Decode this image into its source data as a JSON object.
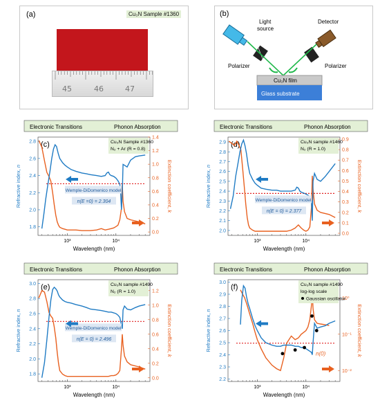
{
  "panel_a": {
    "label": "(a)",
    "sample": "Cu₃N Sample #1360",
    "ruler_numbers": [
      "45",
      "46",
      "47"
    ],
    "film_color": "#c3161c"
  },
  "panel_b": {
    "label": "(b)",
    "light_source": "Light",
    "light_source2": "source",
    "detector": "Detector",
    "polarizer_left": "Polarizer",
    "polarizer_right": "Polarizer",
    "film": "Cu₃N film",
    "substrate": "Glass substrate"
  },
  "colors": {
    "n": "#1f7bc4",
    "k": "#e8601f",
    "ref_line": "#e02020",
    "banner": "#e3f0d6"
  },
  "banner": {
    "left": "Electronic Transitions",
    "right": "Phonon Absorption"
  },
  "xlabel": "Wavelength (nm)",
  "ylabel_left": "Refractive index,",
  "ylabel_left_var": "n",
  "ylabel_right": "Extinction coefficient,",
  "ylabel_right_var": "k",
  "chart_data": [
    {
      "type": "line",
      "label": "(c)",
      "sample": "Cu₃N Sample #1360",
      "condition": "N₂ + Ar (R = 0.8)",
      "model": "Wemple-DiDomenico model",
      "model_value": "n(E =0) = 2.304",
      "x_log": true,
      "xlim": [
        250,
        50000
      ],
      "x_ticks": [
        "10³",
        "10⁴"
      ],
      "n_ylim": [
        1.7,
        2.85
      ],
      "n_ticks": [
        "1.8",
        "2.0",
        "2.2",
        "2.4",
        "2.6",
        "2.8"
      ],
      "k_ylim": [
        -0.05,
        1.4
      ],
      "k_ticks": [
        "0.0",
        "0.2",
        "0.4",
        "0.6",
        "0.8",
        "1.0",
        "1.2",
        "1.4"
      ],
      "ref_n": 2.304,
      "n_series": {
        "x": [
          300,
          330,
          360,
          400,
          440,
          480,
          520,
          560,
          600,
          650,
          700,
          800,
          900,
          1000,
          1200,
          1500,
          2000,
          2500,
          3000,
          4000,
          5000,
          6000,
          6500,
          7000,
          7500,
          8000,
          9000,
          10000,
          11000,
          12000,
          12500,
          13000,
          13500,
          14000,
          15000,
          17000,
          20000,
          25000,
          30000,
          40000
        ],
        "y": [
          1.78,
          1.95,
          2.12,
          2.3,
          2.45,
          2.6,
          2.71,
          2.76,
          2.74,
          2.66,
          2.6,
          2.55,
          2.52,
          2.5,
          2.47,
          2.45,
          2.43,
          2.42,
          2.41,
          2.4,
          2.39,
          2.4,
          2.43,
          2.44,
          2.41,
          2.4,
          2.39,
          2.37,
          2.34,
          2.3,
          2.2,
          2.0,
          2.2,
          2.53,
          2.52,
          2.5,
          2.58,
          2.62,
          2.63,
          2.64
        ]
      },
      "k_series": {
        "x": [
          260,
          300,
          340,
          380,
          420,
          460,
          500,
          540,
          580,
          620,
          660,
          700,
          800,
          900,
          1000,
          1200,
          1500,
          2000,
          3000,
          4000,
          5000,
          6000,
          7000,
          8000,
          9000,
          10000,
          11000,
          12000,
          13000,
          13500,
          14000,
          15000,
          17000,
          20000,
          30000,
          40000
        ],
        "y": [
          1.35,
          1.25,
          1.05,
          0.88,
          0.82,
          0.75,
          0.58,
          0.4,
          0.25,
          0.15,
          0.1,
          0.07,
          0.05,
          0.04,
          0.03,
          0.03,
          0.03,
          0.02,
          0.02,
          0.03,
          0.05,
          0.03,
          0.04,
          0.05,
          0.06,
          0.08,
          0.1,
          0.18,
          0.35,
          0.7,
          0.45,
          0.3,
          0.2,
          0.18,
          0.15,
          0.12
        ]
      }
    },
    {
      "type": "line",
      "label": "(d)",
      "sample": "Cu₃N sample #1460",
      "condition": "N₂ (R = 1.0)",
      "model": "Wemple-DiDomenico model",
      "model_value": "n(E = 0) = 2.377",
      "x_log": true,
      "xlim": [
        250,
        50000
      ],
      "x_ticks": [
        "10³",
        "10⁴"
      ],
      "n_ylim": [
        1.95,
        2.95
      ],
      "n_ticks": [
        "2.0",
        "2.1",
        "2.2",
        "2.3",
        "2.4",
        "2.5",
        "2.6",
        "2.7",
        "2.8",
        "2.9"
      ],
      "k_ylim": [
        -0.02,
        0.92
      ],
      "k_ticks": [
        "0.0",
        "0.1",
        "0.2",
        "0.3",
        "0.4",
        "0.5",
        "0.6",
        "0.7",
        "0.8",
        "0.9"
      ],
      "ref_n": 2.377,
      "n_series": {
        "x": [
          280,
          320,
          360,
          400,
          440,
          480,
          520,
          560,
          600,
          650,
          700,
          800,
          900,
          1000,
          1200,
          1500,
          2000,
          2500,
          3000,
          4000,
          5000,
          6000,
          6500,
          7000,
          7500,
          8000,
          9000,
          10000,
          11000,
          12000,
          13000,
          13500,
          14000,
          15000,
          17000,
          20000,
          25000,
          30000,
          40000
        ],
        "y": [
          2.22,
          2.35,
          2.55,
          2.68,
          2.8,
          2.88,
          2.92,
          2.86,
          2.78,
          2.66,
          2.58,
          2.52,
          2.48,
          2.46,
          2.43,
          2.42,
          2.41,
          2.41,
          2.4,
          2.4,
          2.4,
          2.41,
          2.44,
          2.43,
          2.4,
          2.39,
          2.38,
          2.37,
          2.36,
          2.34,
          2.3,
          2.1,
          2.5,
          2.58,
          2.52,
          2.5,
          2.55,
          2.6,
          2.68
        ]
      },
      "k_series": {
        "x": [
          260,
          300,
          340,
          380,
          420,
          460,
          500,
          540,
          580,
          620,
          660,
          700,
          800,
          900,
          1000,
          1200,
          1500,
          2000,
          3000,
          4000,
          5000,
          6000,
          7000,
          8000,
          9000,
          10000,
          11000,
          12000,
          13000,
          13500,
          14000,
          15000,
          17000,
          20000,
          30000,
          40000
        ],
        "y": [
          0.88,
          0.86,
          0.84,
          0.88,
          0.84,
          0.8,
          0.62,
          0.45,
          0.28,
          0.15,
          0.08,
          0.05,
          0.03,
          0.02,
          0.02,
          0.02,
          0.02,
          0.02,
          0.02,
          0.02,
          0.03,
          0.05,
          0.08,
          0.05,
          0.03,
          0.02,
          0.03,
          0.06,
          0.25,
          0.55,
          0.42,
          0.28,
          0.22,
          0.2,
          0.18,
          0.15
        ]
      }
    },
    {
      "type": "line",
      "label": "(e)",
      "sample": "Cu₃N sample #1490",
      "condition": "N₂ (R = 1.0)",
      "model": "Wemple-DiDomenico model",
      "model_value": "n(E = 0) = 2.496",
      "x_log": true,
      "xlim": [
        250,
        50000
      ],
      "x_ticks": [
        "10³",
        "10⁴"
      ],
      "n_ylim": [
        1.7,
        3.05
      ],
      "n_ticks": [
        "1.8",
        "2.0",
        "2.2",
        "2.4",
        "2.6",
        "2.8",
        "3.0"
      ],
      "k_ylim": [
        -0.05,
        1.35
      ],
      "k_ticks": [
        "0.0",
        "0.2",
        "0.4",
        "0.6",
        "0.8",
        "1.0",
        "1.2"
      ],
      "ref_n": 2.496,
      "n_series": {
        "x": [
          300,
          340,
          380,
          420,
          460,
          500,
          540,
          580,
          620,
          660,
          700,
          800,
          900,
          1000,
          1200,
          1500,
          2000,
          2500,
          3000,
          4000,
          5000,
          6000,
          7000,
          8000,
          9000,
          10000,
          11000,
          12000,
          13000,
          13500,
          14000,
          15000,
          17000,
          20000,
          25000,
          30000,
          40000
        ],
        "y": [
          1.75,
          1.95,
          2.25,
          2.55,
          2.78,
          2.92,
          2.95,
          2.93,
          2.9,
          2.85,
          2.82,
          2.78,
          2.76,
          2.75,
          2.74,
          2.72,
          2.7,
          2.68,
          2.66,
          2.65,
          2.64,
          2.63,
          2.62,
          2.62,
          2.61,
          2.6,
          2.58,
          2.55,
          2.45,
          2.4,
          2.65,
          2.7,
          2.66,
          2.65,
          2.68,
          2.7,
          2.72
        ]
      },
      "k_series": {
        "x": [
          260,
          300,
          340,
          380,
          420,
          460,
          500,
          540,
          580,
          620,
          660,
          700,
          800,
          900,
          1000,
          1200,
          1500,
          2000,
          3000,
          4000,
          5000,
          6000,
          7000,
          8000,
          9000,
          10000,
          11000,
          12000,
          13000,
          13500,
          14000,
          15000,
          17000,
          20000,
          30000,
          40000
        ],
        "y": [
          1.1,
          1.2,
          1.18,
          1.05,
          0.9,
          0.85,
          0.82,
          0.7,
          0.55,
          0.35,
          0.2,
          0.1,
          0.05,
          0.03,
          0.02,
          0.02,
          0.02,
          0.02,
          0.02,
          0.02,
          0.02,
          0.02,
          0.02,
          0.03,
          0.03,
          0.04,
          0.06,
          0.1,
          0.4,
          0.6,
          0.45,
          0.3,
          0.22,
          0.18,
          0.15,
          0.12
        ]
      }
    },
    {
      "type": "line",
      "label": "(f)",
      "sample": "Cu₃N sample #1490",
      "condition": "log-log scale",
      "legend_marker": "Gaussian oscillator",
      "model": "",
      "model_value": "n(0)",
      "x_log": true,
      "xlim": [
        250,
        50000
      ],
      "x_ticks": [
        "10³",
        "10⁴"
      ],
      "n_ylim": [
        2.18,
        3.02
      ],
      "n_ticks": [
        "2.2",
        "2.3",
        "2.4",
        "2.5",
        "2.6",
        "2.7",
        "2.8",
        "2.9",
        "3.0"
      ],
      "k_ylim_log": [
        -2.3,
        0.5
      ],
      "k_ticks_log": [
        "10⁻²",
        "10⁻¹",
        "10⁰"
      ],
      "ref_n": 2.496,
      "n_series": {
        "x": [
          450,
          480,
          520,
          560,
          600,
          650,
          700,
          800,
          900,
          1000,
          1200,
          1500,
          2000,
          2500,
          3000,
          3500,
          4000,
          5000,
          6000,
          7000,
          8000,
          9000,
          10000,
          11000,
          12000,
          13000,
          13500,
          14000,
          15000,
          17000,
          20000,
          25000,
          30000,
          40000
        ],
        "y": [
          2.65,
          2.85,
          2.97,
          2.95,
          2.88,
          2.82,
          2.78,
          2.7,
          2.64,
          2.6,
          2.54,
          2.5,
          2.48,
          2.47,
          2.47,
          2.48,
          2.48,
          2.48,
          2.47,
          2.47,
          2.46,
          2.46,
          2.45,
          2.44,
          2.43,
          2.42,
          2.4,
          2.5,
          2.66,
          2.62,
          2.63,
          2.64,
          2.66,
          2.68
        ]
      },
      "k_series_log": {
        "x": [
          450,
          500,
          550,
          600,
          650,
          700,
          800,
          900,
          1000,
          1200,
          1500,
          2000,
          2500,
          3000,
          3500,
          4000,
          5000,
          6000,
          7000,
          8000,
          9000,
          10000,
          11000,
          12000,
          13000,
          13500,
          14000,
          15000,
          17000,
          20000,
          25000,
          30000
        ],
        "y": [
          0.22,
          0.1,
          0.0,
          -0.15,
          -0.3,
          -0.45,
          -0.7,
          -0.95,
          -1.15,
          -1.4,
          -1.65,
          -1.85,
          -1.95,
          -2.0,
          -1.65,
          -1.25,
          -1.05,
          -1.15,
          -1.1,
          -1.0,
          -0.95,
          -0.9,
          -0.8,
          -0.6,
          -0.2,
          0.15,
          -0.3,
          -0.6,
          -0.7,
          -0.72,
          -0.74,
          -0.76
        ]
      },
      "gaussian_points": {
        "x": [
          3300,
          6000,
          9300,
          13300,
          16600
        ],
        "n": [
          2.41,
          2.44,
          2.46,
          2.72,
          2.6
        ]
      }
    }
  ]
}
